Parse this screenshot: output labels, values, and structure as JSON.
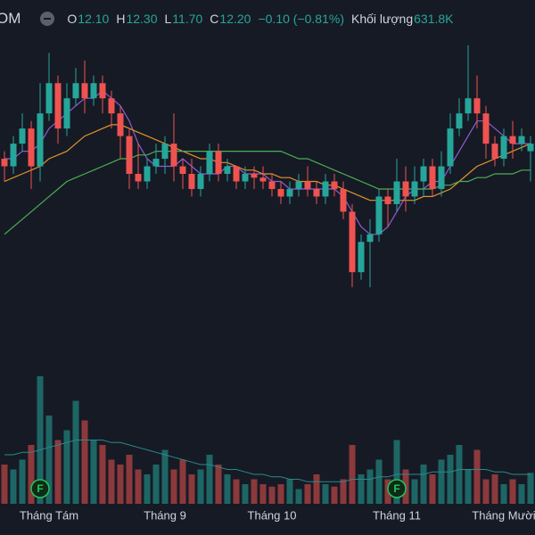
{
  "header": {
    "symbol": "OM",
    "open_label": "O",
    "open": "12.10",
    "high_label": "H",
    "high": "12.30",
    "low_label": "L",
    "low": "11.70",
    "close_label": "C",
    "close": "12.20",
    "change": "−0.10 (−0.81%)",
    "volume_label": "Khối lượng",
    "volume": "631.8K"
  },
  "chart_data": {
    "type": "candlestick",
    "categories": [
      null,
      null,
      null,
      null,
      null,
      "Tháng Tám",
      null,
      null,
      null,
      null,
      null,
      null,
      null,
      null,
      null,
      null,
      null,
      null,
      "Tháng 9",
      null,
      null,
      null,
      null,
      null,
      null,
      null,
      null,
      null,
      null,
      null,
      "Tháng 10",
      null,
      null,
      null,
      null,
      null,
      null,
      null,
      null,
      null,
      null,
      null,
      null,
      null,
      "Tháng 11",
      null,
      null,
      null,
      null,
      null,
      null,
      null,
      null,
      null,
      null,
      null,
      "Tháng Mười",
      null,
      null,
      null
    ],
    "open": [
      12.0,
      11.9,
      12.2,
      12.4,
      11.9,
      12.6,
      13.0,
      12.4,
      12.8,
      13.0,
      12.8,
      13.0,
      12.8,
      12.6,
      12.3,
      11.8,
      11.7,
      11.9,
      12.0,
      12.2,
      11.9,
      11.8,
      11.6,
      11.8,
      12.1,
      11.8,
      11.9,
      11.7,
      11.8,
      11.75,
      11.7,
      11.6,
      11.5,
      11.6,
      11.7,
      11.6,
      11.5,
      11.7,
      11.6,
      11.3,
      10.5,
      10.9,
      11.0,
      11.5,
      11.4,
      11.7,
      11.5,
      11.7,
      11.9,
      11.6,
      11.9,
      12.4,
      12.6,
      12.8,
      12.6,
      12.2,
      12.0,
      12.3,
      12.2,
      12.1
    ],
    "high": [
      12.1,
      12.3,
      12.6,
      12.5,
      13.0,
      13.4,
      13.1,
      13.0,
      13.2,
      13.3,
      13.1,
      13.1,
      12.9,
      12.7,
      12.4,
      12.2,
      12.0,
      12.2,
      12.3,
      12.6,
      12.0,
      12.0,
      11.9,
      12.2,
      12.2,
      12.0,
      11.9,
      11.9,
      11.9,
      11.9,
      11.8,
      11.7,
      11.7,
      11.8,
      11.9,
      11.7,
      11.8,
      11.8,
      11.7,
      11.4,
      11.0,
      11.2,
      11.6,
      11.6,
      12.0,
      11.9,
      11.9,
      12.0,
      12.0,
      12.1,
      12.6,
      12.8,
      13.5,
      13.1,
      12.7,
      12.3,
      12.4,
      12.5,
      12.4,
      12.3
    ],
    "low": [
      11.7,
      11.8,
      12.1,
      11.6,
      11.7,
      12.5,
      12.2,
      12.3,
      12.7,
      12.6,
      12.7,
      12.6,
      12.4,
      12.0,
      11.6,
      11.6,
      11.6,
      11.8,
      11.8,
      11.7,
      11.6,
      11.5,
      11.5,
      11.7,
      11.7,
      11.7,
      11.6,
      11.6,
      11.6,
      11.6,
      11.5,
      11.4,
      11.4,
      11.5,
      11.5,
      11.4,
      11.4,
      11.5,
      11.2,
      10.3,
      10.4,
      10.3,
      10.9,
      11.1,
      11.3,
      11.3,
      11.4,
      11.5,
      11.5,
      11.5,
      11.8,
      12.3,
      12.5,
      12.4,
      12.0,
      11.9,
      11.9,
      12.0,
      12.1,
      11.7
    ],
    "close": [
      11.9,
      12.2,
      12.4,
      11.9,
      12.6,
      13.0,
      12.4,
      12.8,
      13.0,
      12.8,
      13.0,
      12.8,
      12.6,
      12.3,
      11.8,
      11.7,
      11.9,
      12.0,
      12.2,
      11.9,
      11.8,
      11.6,
      11.8,
      12.1,
      11.8,
      11.9,
      11.7,
      11.8,
      11.75,
      11.7,
      11.6,
      11.5,
      11.6,
      11.7,
      11.6,
      11.5,
      11.7,
      11.6,
      11.3,
      10.5,
      10.9,
      11.0,
      11.5,
      11.4,
      11.7,
      11.5,
      11.7,
      11.9,
      11.6,
      11.9,
      12.4,
      12.6,
      12.8,
      12.6,
      12.2,
      12.0,
      12.3,
      12.2,
      12.3,
      12.2
    ],
    "up_color": "#26a69a",
    "down_color": "#ef5350",
    "ylim": [
      9.5,
      14.1
    ],
    "lines": [
      {
        "color": "#8e5bd6",
        "values": [
          12.0,
          12.0,
          12.1,
          12.1,
          12.2,
          12.4,
          12.5,
          12.6,
          12.7,
          12.8,
          12.8,
          12.9,
          12.8,
          12.7,
          12.5,
          12.2,
          12.0,
          11.9,
          11.9,
          11.9,
          12.0,
          11.9,
          11.8,
          11.8,
          11.8,
          11.9,
          11.9,
          11.8,
          11.8,
          11.8,
          11.7,
          11.7,
          11.6,
          11.6,
          11.6,
          11.6,
          11.6,
          11.6,
          11.5,
          11.3,
          11.1,
          11.0,
          11.0,
          11.1,
          11.3,
          11.5,
          11.6,
          11.6,
          11.7,
          11.7,
          11.9,
          12.1,
          12.3,
          12.5,
          12.5,
          12.4,
          12.3,
          12.2,
          12.2,
          12.2
        ]
      },
      {
        "color": "#e0942b",
        "values": [
          11.7,
          11.75,
          11.8,
          11.85,
          11.9,
          12.0,
          12.05,
          12.1,
          12.2,
          12.3,
          12.35,
          12.4,
          12.45,
          12.45,
          12.4,
          12.35,
          12.3,
          12.25,
          12.2,
          12.15,
          12.1,
          12.05,
          12.0,
          12.0,
          11.95,
          11.95,
          11.9,
          11.85,
          11.85,
          11.8,
          11.8,
          11.75,
          11.75,
          11.7,
          11.7,
          11.7,
          11.65,
          11.65,
          11.6,
          11.55,
          11.5,
          11.45,
          11.45,
          11.45,
          11.45,
          11.45,
          11.45,
          11.5,
          11.5,
          11.55,
          11.6,
          11.7,
          11.8,
          11.9,
          11.95,
          12.0,
          12.05,
          12.1,
          12.15,
          12.2
        ]
      },
      {
        "color": "#4caf50",
        "values": [
          11.0,
          11.1,
          11.2,
          11.3,
          11.4,
          11.5,
          11.6,
          11.7,
          11.75,
          11.8,
          11.85,
          11.9,
          11.95,
          12.0,
          12.0,
          12.05,
          12.05,
          12.1,
          12.1,
          12.1,
          12.1,
          12.1,
          12.1,
          12.1,
          12.1,
          12.1,
          12.1,
          12.1,
          12.1,
          12.1,
          12.1,
          12.1,
          12.05,
          12.0,
          12.0,
          11.95,
          11.9,
          11.85,
          11.8,
          11.75,
          11.7,
          11.65,
          11.6,
          11.6,
          11.6,
          11.6,
          11.6,
          11.6,
          11.6,
          11.65,
          11.65,
          11.7,
          11.7,
          11.75,
          11.75,
          11.8,
          11.8,
          11.8,
          11.85,
          11.85
        ]
      }
    ],
    "volume": [
      800,
      700,
      900,
      1200,
      2600,
      1800,
      1300,
      1500,
      2100,
      1700,
      1300,
      1200,
      900,
      800,
      1000,
      700,
      600,
      800,
      1100,
      700,
      900,
      600,
      700,
      1000,
      800,
      600,
      500,
      400,
      500,
      400,
      350,
      400,
      500,
      300,
      400,
      600,
      400,
      350,
      500,
      1200,
      600,
      700,
      900,
      500,
      1300,
      700,
      500,
      800,
      600,
      900,
      1000,
      1200,
      700,
      1100,
      500,
      600,
      400,
      500,
      400,
      631.8
    ],
    "volume_ma": {
      "color": "#2a8a88",
      "values": [
        1000,
        1000,
        1050,
        1050,
        1100,
        1150,
        1200,
        1250,
        1300,
        1300,
        1300,
        1300,
        1250,
        1250,
        1200,
        1150,
        1100,
        1050,
        1000,
        950,
        900,
        850,
        800,
        800,
        750,
        700,
        700,
        650,
        600,
        600,
        550,
        550,
        500,
        500,
        450,
        450,
        450,
        450,
        450,
        500,
        500,
        500,
        550,
        550,
        600,
        600,
        600,
        600,
        650,
        650,
        650,
        700,
        700,
        700,
        700,
        650,
        650,
        600,
        600,
        600
      ]
    },
    "volume_ylim": [
      0,
      3000
    ],
    "events": [
      {
        "index": 4,
        "label": "F"
      },
      {
        "index": 44,
        "label": "F"
      }
    ]
  }
}
